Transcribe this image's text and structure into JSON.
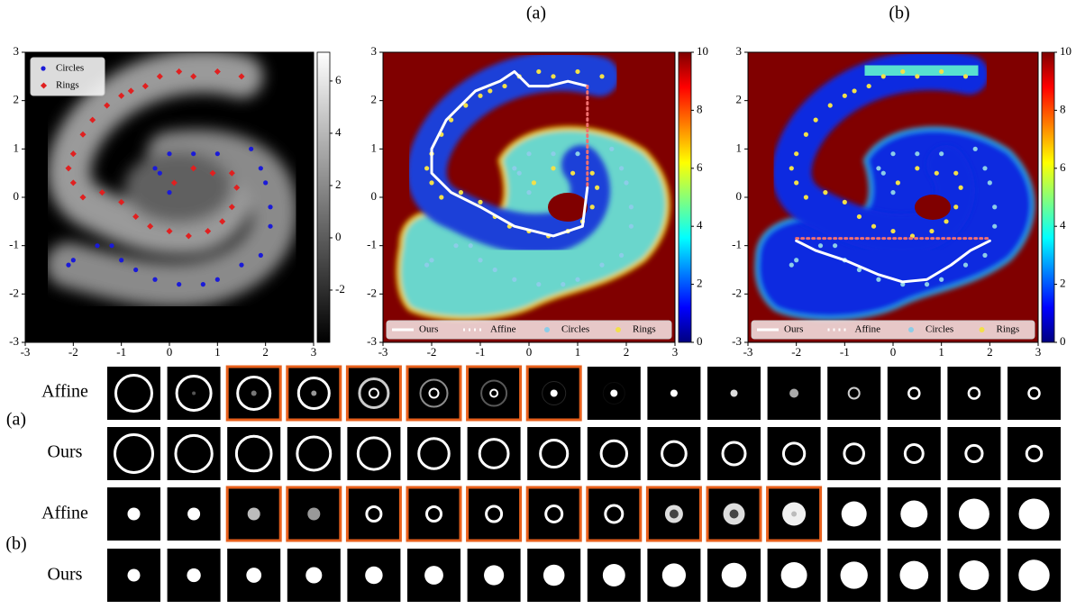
{
  "panel_labels": [
    "(a)",
    "(b)"
  ],
  "chart_data": [
    {
      "type": "scatter",
      "xlim": [
        -3,
        3
      ],
      "ylim": [
        -3,
        3
      ],
      "xticks": [
        -3,
        -2,
        -1,
        0,
        1,
        2,
        3
      ],
      "yticks": [
        -3,
        -2,
        -1,
        0,
        1,
        2,
        3
      ],
      "legend": "upper left",
      "colorbar": {
        "colormap": "gray",
        "lim": [
          -4,
          7.1
        ],
        "ticks": [
          -2,
          0,
          2,
          4,
          6
        ]
      },
      "series": [
        {
          "name": "Circles",
          "color": "#1a1ad8",
          "marker": "circle",
          "x": [
            -2.1,
            -2.0,
            -1.5,
            -1.2,
            -1.0,
            -0.7,
            -0.3,
            0.2,
            0.7,
            1.0,
            1.5,
            1.9,
            2.1,
            2.1,
            2.0,
            1.9,
            1.7,
            1.0,
            0.5,
            0.0,
            -0.3,
            0.0,
            -0.2
          ],
          "values": [
            -1.4,
            -1.3,
            -1.0,
            -1.0,
            -1.3,
            -1.5,
            -1.7,
            -1.8,
            -1.8,
            -1.7,
            -1.4,
            -1.2,
            -0.6,
            -0.2,
            0.3,
            0.6,
            1.0,
            0.9,
            0.9,
            0.9,
            0.6,
            0.1,
            0.5
          ]
        },
        {
          "name": "Rings",
          "color": "#e02020",
          "marker": "diamond",
          "x": [
            1.5,
            1.0,
            0.5,
            0.2,
            -0.2,
            -0.5,
            -0.8,
            -1.0,
            -1.3,
            -1.6,
            -1.8,
            -2.0,
            -2.1,
            -2.0,
            -1.8,
            -1.4,
            -1.0,
            -0.7,
            -0.4,
            0.0,
            0.4,
            0.8,
            1.1,
            1.3,
            1.4,
            1.3,
            0.9,
            0.5,
            0.1
          ],
          "values": [
            2.5,
            2.6,
            2.5,
            2.6,
            2.5,
            2.3,
            2.2,
            2.1,
            1.9,
            1.6,
            1.3,
            0.9,
            0.6,
            0.3,
            0.0,
            0.1,
            -0.1,
            -0.4,
            -0.6,
            -0.7,
            -0.8,
            -0.7,
            -0.5,
            -0.2,
            0.2,
            0.5,
            0.5,
            0.6,
            0.3
          ]
        }
      ]
    },
    {
      "type": "line",
      "xlim": [
        -3,
        3
      ],
      "ylim": [
        -3,
        3
      ],
      "xticks": [
        -3,
        -2,
        -1,
        0,
        1,
        2,
        3
      ],
      "yticks": [
        -3,
        -2,
        -1,
        0,
        1,
        2,
        3
      ],
      "legend": "lower center",
      "colorbar": {
        "colormap": "jet",
        "lim": [
          0,
          10
        ],
        "ticks": [
          0,
          2,
          4,
          6,
          8,
          10
        ]
      },
      "series": [
        {
          "name": "Ours",
          "color": "#ffffff",
          "dash": "solid",
          "x": [
            1.2,
            1.1,
            0.5,
            -0.3,
            -1.0,
            -1.6,
            -2.0,
            -2.0,
            -1.7,
            -1.1,
            -0.6,
            -0.3,
            0.0,
            0.4,
            0.8,
            1.2
          ],
          "values": [
            0.2,
            -0.6,
            -0.8,
            -0.6,
            -0.2,
            0.1,
            0.5,
            1.0,
            1.6,
            2.2,
            2.4,
            2.6,
            2.3,
            2.3,
            2.4,
            2.3
          ]
        },
        {
          "name": "Affine",
          "color": "#f07070",
          "dash": "dotted",
          "x": [
            1.2,
            1.2
          ],
          "values": [
            2.3,
            0.2
          ]
        },
        {
          "name": "Circles",
          "color": "#8ccde8"
        },
        {
          "name": "Rings",
          "color": "#f2e04a"
        }
      ]
    },
    {
      "type": "line",
      "xlim": [
        -3,
        3
      ],
      "ylim": [
        -3,
        3
      ],
      "xticks": [
        -3,
        -2,
        -1,
        0,
        1,
        2,
        3
      ],
      "yticks": [
        -3,
        -2,
        -1,
        0,
        1,
        2,
        3
      ],
      "legend": "lower center",
      "colorbar": {
        "colormap": "jet",
        "lim": [
          0,
          10
        ],
        "ticks": [
          0,
          2,
          4,
          6,
          8,
          10
        ]
      },
      "series": [
        {
          "name": "Ours",
          "color": "#ffffff",
          "dash": "solid",
          "x": [
            -2.0,
            -1.6,
            -1.0,
            -0.3,
            0.2,
            0.7,
            1.2,
            1.6,
            2.0
          ],
          "values": [
            -0.9,
            -1.1,
            -1.3,
            -1.6,
            -1.75,
            -1.7,
            -1.4,
            -1.1,
            -0.9
          ]
        },
        {
          "name": "Affine",
          "color": "#f07070",
          "dash": "dotted",
          "x": [
            -2.0,
            2.0
          ],
          "values": [
            -0.85,
            -0.85
          ]
        },
        {
          "name": "Circles",
          "color": "#8ccde8"
        },
        {
          "name": "Rings",
          "color": "#f2e04a"
        }
      ]
    }
  ],
  "thumbnail_grid": {
    "group_labels": [
      "(a)",
      "(b)"
    ],
    "row_labels": [
      "Affine",
      "Ours",
      "Affine",
      "Ours"
    ]
  }
}
